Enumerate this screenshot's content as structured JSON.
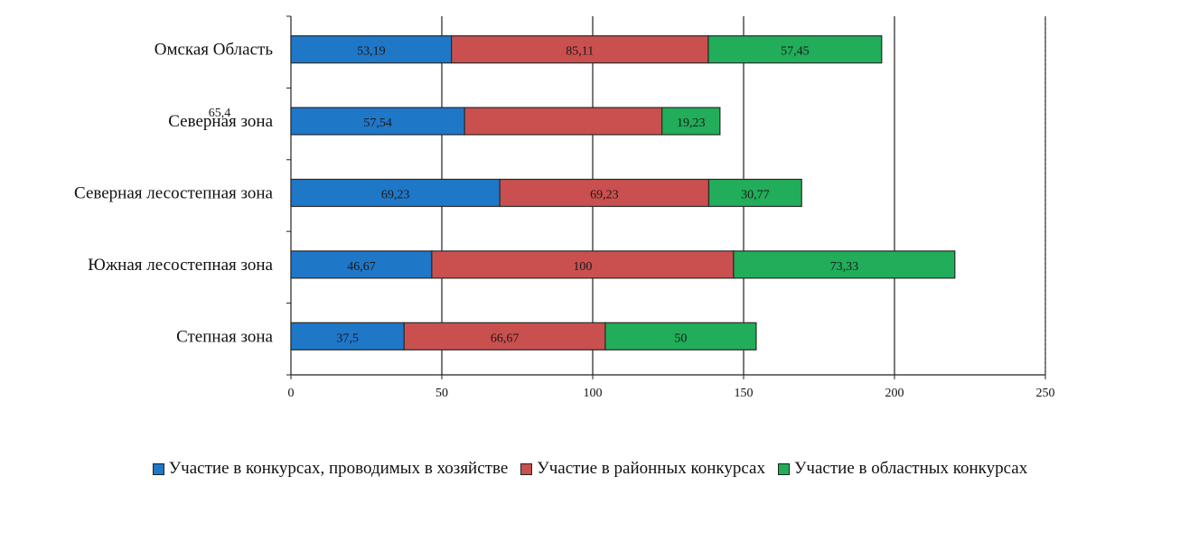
{
  "chart_data": {
    "type": "bar",
    "orientation": "horizontal",
    "stacked": true,
    "categories": [
      "Омская Область",
      "Северная зона",
      "Северная лесостепная зона",
      "Южная лесостепная зона",
      "Степная зона"
    ],
    "series": [
      {
        "name": "Участие в конкурсах, проводимых в хозяйстве",
        "color": "#1f77c8",
        "values": [
          53.19,
          57.54,
          69.23,
          46.67,
          37.5
        ],
        "labels": [
          "53,19",
          "57,54",
          "69,23",
          "46,67",
          "37,5"
        ]
      },
      {
        "name": "Участие в районных конкурсах",
        "color": "#c9504f",
        "values": [
          85.11,
          65.4,
          69.23,
          100,
          66.67
        ],
        "labels": [
          "85,11",
          "",
          "69,23",
          "100",
          "66,67"
        ]
      },
      {
        "name": "Участие в областных конкурсах",
        "color": "#21ad5a",
        "values": [
          57.45,
          19.23,
          30.77,
          73.33,
          50
        ],
        "labels": [
          "57,45",
          "19,23",
          "30,77",
          "73,33",
          "50"
        ]
      }
    ],
    "xlim": [
      0,
      250
    ],
    "xticks": [
      "0",
      "50",
      "100",
      "150",
      "200",
      "250"
    ],
    "xtick_values": [
      0,
      50,
      100,
      150,
      200,
      250
    ],
    "grid": "vertical",
    "legend_position": "bottom",
    "overlap_label": "65,4"
  }
}
